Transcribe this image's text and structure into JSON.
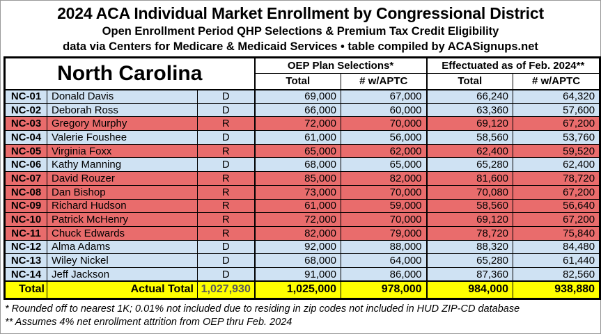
{
  "header": {
    "title": "2024 ACA Individual Market Enrollment by Congressional District",
    "subtitle": "Open Enrollment Period QHP Selections & Premium Tax Credit Eligibility",
    "source_line": "data via Centers for Medicare & Medicaid Services • table compiled by ACASignups.net"
  },
  "chart_data": {
    "type": "table",
    "state": "North Carolina",
    "column_groups": {
      "oep": "OEP Plan Selections*",
      "effectuated": "Effectuated as of Feb. 2024**"
    },
    "sub_columns": {
      "total": "Total",
      "aptc": "# w/APTC"
    },
    "rows": [
      {
        "district": "NC-01",
        "representative": "Donald Davis",
        "party": "D",
        "oep_total": 69000,
        "oep_aptc": 67000,
        "eff_total": 66240,
        "eff_aptc": 64320
      },
      {
        "district": "NC-02",
        "representative": "Deborah Ross",
        "party": "D",
        "oep_total": 66000,
        "oep_aptc": 60000,
        "eff_total": 63360,
        "eff_aptc": 57600
      },
      {
        "district": "NC-03",
        "representative": "Gregory Murphy",
        "party": "R",
        "oep_total": 72000,
        "oep_aptc": 70000,
        "eff_total": 69120,
        "eff_aptc": 67200
      },
      {
        "district": "NC-04",
        "representative": "Valerie Foushee",
        "party": "D",
        "oep_total": 61000,
        "oep_aptc": 56000,
        "eff_total": 58560,
        "eff_aptc": 53760
      },
      {
        "district": "NC-05",
        "representative": "Virginia Foxx",
        "party": "R",
        "oep_total": 65000,
        "oep_aptc": 62000,
        "eff_total": 62400,
        "eff_aptc": 59520
      },
      {
        "district": "NC-06",
        "representative": "Kathy Manning",
        "party": "D",
        "oep_total": 68000,
        "oep_aptc": 65000,
        "eff_total": 65280,
        "eff_aptc": 62400
      },
      {
        "district": "NC-07",
        "representative": "David Rouzer",
        "party": "R",
        "oep_total": 85000,
        "oep_aptc": 82000,
        "eff_total": 81600,
        "eff_aptc": 78720
      },
      {
        "district": "NC-08",
        "representative": "Dan Bishop",
        "party": "R",
        "oep_total": 73000,
        "oep_aptc": 70000,
        "eff_total": 70080,
        "eff_aptc": 67200
      },
      {
        "district": "NC-09",
        "representative": "Richard Hudson",
        "party": "R",
        "oep_total": 61000,
        "oep_aptc": 59000,
        "eff_total": 58560,
        "eff_aptc": 56640
      },
      {
        "district": "NC-10",
        "representative": "Patrick McHenry",
        "party": "R",
        "oep_total": 72000,
        "oep_aptc": 70000,
        "eff_total": 69120,
        "eff_aptc": 67200
      },
      {
        "district": "NC-11",
        "representative": "Chuck Edwards",
        "party": "R",
        "oep_total": 82000,
        "oep_aptc": 79000,
        "eff_total": 78720,
        "eff_aptc": 75840
      },
      {
        "district": "NC-12",
        "representative": "Alma Adams",
        "party": "D",
        "oep_total": 92000,
        "oep_aptc": 88000,
        "eff_total": 88320,
        "eff_aptc": 84480
      },
      {
        "district": "NC-13",
        "representative": "Wiley Nickel",
        "party": "D",
        "oep_total": 68000,
        "oep_aptc": 64000,
        "eff_total": 65280,
        "eff_aptc": 61440
      },
      {
        "district": "NC-14",
        "representative": "Jeff Jackson",
        "party": "D",
        "oep_total": 91000,
        "oep_aptc": 86000,
        "eff_total": 87360,
        "eff_aptc": 82560
      }
    ],
    "totals": {
      "label": "Total",
      "actual_total_label": "Actual Total",
      "actual_total": 1027930,
      "oep_total": 1025000,
      "oep_aptc": 978000,
      "eff_total": 984000,
      "eff_aptc": 938880
    }
  },
  "footnotes": {
    "line1": "* Rounded off to nearest 1K; 0.01% not included due to residing in zip codes not included in HUD ZIP-CD database",
    "line2": "** Assumes 4% net enrollment attrition from OEP thru Feb. 2024"
  },
  "colors": {
    "democrat_row": "#cfe2f3",
    "republican_row": "#e96c6c",
    "total_row": "#ffff00",
    "actual_total_text": "#595959",
    "border": "#000000"
  }
}
